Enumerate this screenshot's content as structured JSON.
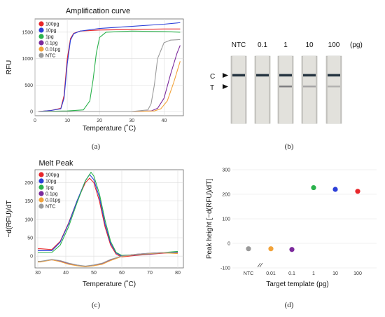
{
  "panels": {
    "a": "(a)",
    "b": "(b)",
    "c": "(c)",
    "d": "(d)"
  },
  "series_colors": {
    "100pg": "#e8262a",
    "10pg": "#2c3fd8",
    "1pg": "#2bb24c",
    "0.1pg": "#7c2a9c",
    "0.01pg": "#f2a33a",
    "NTC": "#9a9a9a"
  },
  "chart_data": [
    {
      "id": "amplification",
      "type": "line",
      "title": "Amplification curve",
      "xlabel": "Temperature (˚C)",
      "ylabel": "RFU",
      "xlim": [
        0,
        46
      ],
      "ylim": [
        -80,
        1750
      ],
      "xticks": [
        0,
        10,
        20,
        30,
        40
      ],
      "yticks": [
        0,
        500,
        1000,
        1500
      ],
      "grid": true,
      "legend": "top-left",
      "series": [
        {
          "name": "100pg",
          "x": [
            1,
            5,
            8,
            9,
            10,
            11,
            12,
            14,
            20,
            30,
            40,
            45
          ],
          "y": [
            0,
            20,
            60,
            300,
            1000,
            1380,
            1480,
            1520,
            1540,
            1550,
            1560,
            1560
          ]
        },
        {
          "name": "10pg",
          "x": [
            1,
            5,
            8,
            9,
            10,
            11,
            12,
            14,
            20,
            30,
            40,
            45
          ],
          "y": [
            0,
            20,
            50,
            250,
            900,
            1350,
            1470,
            1520,
            1570,
            1610,
            1650,
            1680
          ]
        },
        {
          "name": "1pg",
          "x": [
            1,
            10,
            15,
            17,
            18,
            19,
            20,
            22,
            30,
            40,
            45
          ],
          "y": [
            0,
            10,
            30,
            200,
            600,
            1100,
            1400,
            1500,
            1520,
            1510,
            1500
          ]
        },
        {
          "name": "0.1pg",
          "x": [
            1,
            30,
            36,
            38,
            40,
            42,
            44,
            45
          ],
          "y": [
            0,
            0,
            10,
            60,
            250,
            700,
            1100,
            1250
          ]
        },
        {
          "name": "0.01pg",
          "x": [
            1,
            30,
            37,
            39,
            41,
            43,
            45
          ],
          "y": [
            0,
            0,
            10,
            50,
            200,
            550,
            950
          ]
        },
        {
          "name": "NTC",
          "x": [
            1,
            30,
            35,
            36,
            37,
            38,
            40,
            42,
            45
          ],
          "y": [
            0,
            0,
            30,
            150,
            500,
            1000,
            1300,
            1350,
            1360
          ]
        }
      ]
    },
    {
      "id": "gel",
      "type": "other",
      "lane_labels": [
        "NTC",
        "0.1",
        "1",
        "10",
        "100"
      ],
      "unit_label": "(pg)",
      "markers": [
        "C",
        "T"
      ],
      "test_band_strength": [
        0,
        0,
        0.75,
        0.45,
        0.35
      ]
    },
    {
      "id": "melt",
      "type": "line",
      "title": "Melt Peak",
      "xlabel": "Temperature (˚C)",
      "ylabel": "−d(RFU)/dT",
      "xlim": [
        29,
        82
      ],
      "ylim": [
        -32,
        235
      ],
      "xticks": [
        30,
        40,
        50,
        60,
        70,
        80
      ],
      "yticks": [
        0,
        50,
        100,
        150,
        200
      ],
      "grid": true,
      "legend": "top-left",
      "series": [
        {
          "name": "100pg",
          "x": [
            30,
            31,
            35,
            38,
            41,
            44,
            47,
            48.5,
            50,
            52,
            54,
            56,
            58,
            60,
            65,
            70,
            75,
            80
          ],
          "y": [
            20,
            20,
            18,
            40,
            90,
            150,
            200,
            212,
            200,
            150,
            80,
            30,
            5,
            -2,
            2,
            5,
            8,
            10
          ]
        },
        {
          "name": "10pg",
          "x": [
            30,
            31,
            35,
            38,
            41,
            44,
            47,
            48.5,
            50,
            52,
            54,
            56,
            58,
            60,
            65,
            70,
            75,
            80
          ],
          "y": [
            15,
            15,
            15,
            38,
            88,
            150,
            205,
            222,
            208,
            160,
            88,
            35,
            8,
            0,
            3,
            6,
            9,
            12
          ]
        },
        {
          "name": "1pg",
          "x": [
            30,
            31,
            35,
            38,
            41,
            44,
            47,
            49,
            50,
            52,
            54,
            56,
            58,
            60,
            65,
            70,
            75,
            80
          ],
          "y": [
            10,
            10,
            10,
            30,
            80,
            145,
            205,
            228,
            218,
            170,
            98,
            40,
            10,
            2,
            4,
            7,
            10,
            13
          ]
        },
        {
          "name": "0.1pg",
          "x": [
            30,
            31,
            35,
            38,
            41,
            44,
            47,
            50,
            53,
            56,
            60,
            65,
            70,
            75,
            80
          ],
          "y": [
            -15,
            -15,
            -10,
            -14,
            -20,
            -25,
            -28,
            -25,
            -20,
            -10,
            0,
            5,
            8,
            10,
            8
          ]
        },
        {
          "name": "0.01pg",
          "x": [
            30,
            31,
            35,
            38,
            41,
            44,
            47,
            50,
            53,
            56,
            60,
            65,
            70,
            75,
            80
          ],
          "y": [
            -16,
            -16,
            -10,
            -15,
            -22,
            -26,
            -29,
            -26,
            -22,
            -12,
            -1,
            4,
            7,
            9,
            7
          ]
        },
        {
          "name": "NTC",
          "x": [
            30,
            31,
            35,
            38,
            41,
            44,
            47,
            50,
            53,
            56,
            60,
            65,
            70,
            75,
            80
          ],
          "y": [
            -14,
            -14,
            -9,
            -12,
            -19,
            -24,
            -27,
            -24,
            -19,
            -9,
            0,
            5,
            8,
            10,
            9
          ]
        }
      ]
    },
    {
      "id": "peak",
      "type": "scatter",
      "xlabel": "Target template (pg)",
      "ylabel": "Peak height [−d(RFU)/dT]",
      "ylim": [
        -100,
        300
      ],
      "yticks": [
        -100,
        0,
        100,
        200,
        300
      ],
      "categories": [
        "NTC",
        "0.01",
        "0.1",
        "1",
        "10",
        "100"
      ],
      "values": [
        -22,
        -22,
        -25,
        227,
        220,
        212
      ],
      "point_colors": [
        "#9a9a9a",
        "#f2a33a",
        "#7c2a9c",
        "#2bb24c",
        "#2c3fd8",
        "#e8262a"
      ],
      "grid": true
    }
  ]
}
